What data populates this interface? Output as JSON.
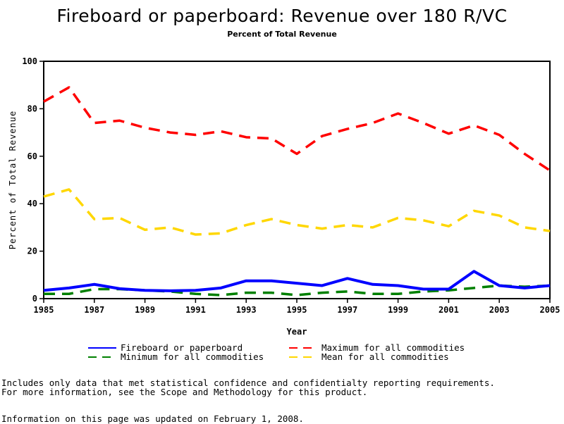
{
  "chart_data": {
    "type": "line",
    "title": "Fireboard or paperboard: Revenue over 180 R/VC",
    "subtitle": "Percent of Total Revenue",
    "xlabel": "Year",
    "ylabel": "Percent of Total Revenue",
    "xlim": [
      1985,
      2005
    ],
    "ylim": [
      0,
      100
    ],
    "xticks": [
      "1985",
      "1987",
      "1989",
      "1991",
      "1993",
      "1995",
      "1997",
      "1999",
      "2001",
      "2003",
      "2005"
    ],
    "yticks": [
      "0",
      "20",
      "40",
      "60",
      "80",
      "100"
    ],
    "x": [
      1985,
      1986,
      1987,
      1988,
      1989,
      1990,
      1991,
      1992,
      1993,
      1994,
      1995,
      1996,
      1997,
      1998,
      1999,
      2000,
      2001,
      2002,
      2003,
      2004,
      2005
    ],
    "series": [
      {
        "name": "Fireboard or paperboard",
        "color": "#0000ff",
        "dash": "solid",
        "values": [
          3.5,
          4.5,
          6,
          4.2,
          3.5,
          3.3,
          3.5,
          4.5,
          7.5,
          7.5,
          6.5,
          5.5,
          8.5,
          6,
          5.5,
          4,
          4,
          11.5,
          5.5,
          4.5,
          5.5
        ]
      },
      {
        "name": "Maximum for all commodities",
        "color": "#ff0000",
        "dash": "dashed",
        "values": [
          83,
          89,
          74,
          75,
          72,
          70,
          69,
          70.5,
          68,
          67.5,
          61,
          68.5,
          71.5,
          74,
          78,
          74,
          69.5,
          73,
          69,
          61,
          54
        ]
      },
      {
        "name": "Minimum for all commodities",
        "color": "#008000",
        "dash": "dashed",
        "values": [
          2,
          2,
          4,
          4,
          3.5,
          3,
          2,
          1.5,
          2.5,
          2.5,
          1.5,
          2.5,
          3,
          2,
          2,
          3,
          3.5,
          4.5,
          5.5,
          5,
          5.5
        ]
      },
      {
        "name": "Mean for all commodities",
        "color": "#ffd700",
        "dash": "dashed",
        "values": [
          43,
          46,
          33.5,
          34,
          29,
          30,
          27,
          27.5,
          31,
          33.5,
          31,
          29.5,
          31,
          30,
          34,
          33,
          30.5,
          37,
          35,
          30,
          28.5
        ]
      }
    ],
    "legend_position": "bottom",
    "grid": false
  },
  "notes": [
    "Includes only data that met statistical confidence and confidentialty reporting requirements.",
    "For more information, see the Scope and Methodology for this product.",
    "Information on this page was updated on February 1, 2008."
  ]
}
